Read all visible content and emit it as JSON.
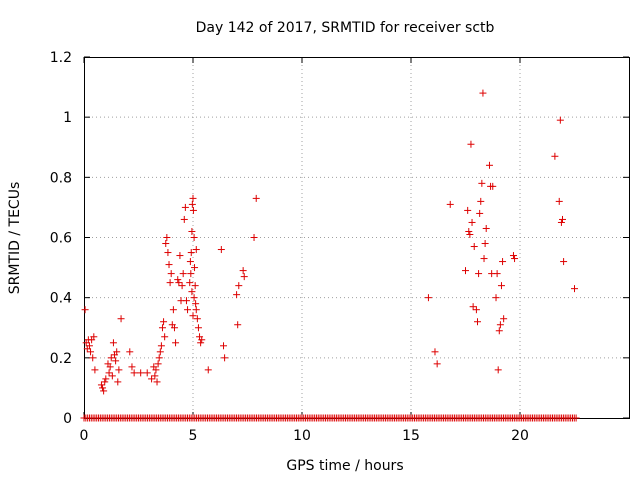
{
  "chart_data": {
    "type": "scatter",
    "title": "Day 142 of 2017, SRMTID for receiver sctb",
    "xlabel": "GPS time / hours",
    "ylabel": "SRMTID / TECUs",
    "xlim": [
      0,
      25
    ],
    "ylim": [
      0,
      1.2
    ],
    "x_ticks": [
      0,
      5,
      10,
      15,
      20
    ],
    "x_tick_labels": [
      "0",
      "5",
      "10",
      "15",
      "20"
    ],
    "y_ticks": [
      0,
      0.2,
      0.4,
      0.6,
      0.8,
      1.0,
      1.2
    ],
    "y_tick_labels": [
      "0",
      "0.2",
      "0.4",
      "0.6",
      "0.8",
      "1",
      "1.2"
    ],
    "grid": true,
    "marker": "+",
    "series": [
      {
        "name": "sctb",
        "color": "#dd0000",
        "points": [
          [
            0.05,
            0.36
          ],
          [
            0.1,
            0.25
          ],
          [
            0.15,
            0.23
          ],
          [
            0.2,
            0.26
          ],
          [
            0.25,
            0.24
          ],
          [
            0.3,
            0.22
          ],
          [
            0.35,
            0.26
          ],
          [
            0.4,
            0.2
          ],
          [
            0.45,
            0.27
          ],
          [
            0.5,
            0.16
          ],
          [
            0.8,
            0.11
          ],
          [
            0.85,
            0.1
          ],
          [
            0.9,
            0.09
          ],
          [
            0.95,
            0.12
          ],
          [
            1.0,
            0.13
          ],
          [
            1.1,
            0.18
          ],
          [
            1.15,
            0.15
          ],
          [
            1.2,
            0.17
          ],
          [
            1.25,
            0.2
          ],
          [
            1.3,
            0.14
          ],
          [
            1.35,
            0.25
          ],
          [
            1.4,
            0.21
          ],
          [
            1.45,
            0.19
          ],
          [
            1.5,
            0.22
          ],
          [
            1.55,
            0.12
          ],
          [
            1.6,
            0.16
          ],
          [
            1.7,
            0.33
          ],
          [
            2.1,
            0.22
          ],
          [
            2.2,
            0.17
          ],
          [
            2.3,
            0.15
          ],
          [
            2.6,
            0.15
          ],
          [
            2.9,
            0.15
          ],
          [
            3.1,
            0.13
          ],
          [
            3.2,
            0.17
          ],
          [
            3.25,
            0.14
          ],
          [
            3.3,
            0.16
          ],
          [
            3.35,
            0.12
          ],
          [
            3.4,
            0.18
          ],
          [
            3.45,
            0.2
          ],
          [
            3.5,
            0.22
          ],
          [
            3.55,
            0.24
          ],
          [
            3.6,
            0.3
          ],
          [
            3.65,
            0.32
          ],
          [
            3.7,
            0.27
          ],
          [
            3.75,
            0.58
          ],
          [
            3.8,
            0.6
          ],
          [
            3.85,
            0.55
          ],
          [
            3.9,
            0.51
          ],
          [
            3.95,
            0.45
          ],
          [
            4.0,
            0.48
          ],
          [
            4.05,
            0.31
          ],
          [
            4.1,
            0.36
          ],
          [
            4.15,
            0.3
          ],
          [
            4.2,
            0.25
          ],
          [
            4.3,
            0.46
          ],
          [
            4.35,
            0.45
          ],
          [
            4.4,
            0.54
          ],
          [
            4.45,
            0.39
          ],
          [
            4.5,
            0.44
          ],
          [
            4.55,
            0.48
          ],
          [
            4.6,
            0.66
          ],
          [
            4.65,
            0.7
          ],
          [
            4.7,
            0.39
          ],
          [
            4.75,
            0.36
          ],
          [
            4.85,
            0.45
          ],
          [
            4.88,
            0.52
          ],
          [
            4.9,
            0.48
          ],
          [
            4.92,
            0.55
          ],
          [
            4.95,
            0.62
          ],
          [
            4.97,
            0.71
          ],
          [
            5.0,
            0.73
          ],
          [
            5.02,
            0.69
          ],
          [
            5.05,
            0.6
          ],
          [
            5.07,
            0.5
          ],
          [
            5.1,
            0.44
          ],
          [
            5.12,
            0.38
          ],
          [
            5.15,
            0.36
          ],
          [
            5.2,
            0.33
          ],
          [
            5.25,
            0.3
          ],
          [
            5.3,
            0.27
          ],
          [
            5.35,
            0.25
          ],
          [
            5.4,
            0.26
          ],
          [
            5.0,
            0.34
          ],
          [
            5.05,
            0.4
          ],
          [
            5.15,
            0.56
          ],
          [
            4.95,
            0.42
          ],
          [
            5.7,
            0.16
          ],
          [
            6.3,
            0.56
          ],
          [
            6.4,
            0.24
          ],
          [
            6.45,
            0.2
          ],
          [
            7.0,
            0.41
          ],
          [
            7.05,
            0.31
          ],
          [
            7.1,
            0.44
          ],
          [
            7.3,
            0.49
          ],
          [
            7.35,
            0.47
          ],
          [
            7.8,
            0.6
          ],
          [
            7.9,
            0.73
          ],
          [
            15.8,
            0.4
          ],
          [
            16.1,
            0.22
          ],
          [
            16.2,
            0.18
          ],
          [
            16.8,
            0.71
          ],
          [
            17.5,
            0.49
          ],
          [
            17.6,
            0.69
          ],
          [
            17.65,
            0.62
          ],
          [
            17.7,
            0.61
          ],
          [
            17.75,
            0.91
          ],
          [
            17.8,
            0.65
          ],
          [
            17.85,
            0.37
          ],
          [
            17.9,
            0.57
          ],
          [
            18.0,
            0.36
          ],
          [
            18.05,
            0.32
          ],
          [
            18.1,
            0.48
          ],
          [
            18.15,
            0.68
          ],
          [
            18.2,
            0.72
          ],
          [
            18.25,
            0.78
          ],
          [
            18.3,
            1.08
          ],
          [
            18.35,
            0.53
          ],
          [
            18.4,
            0.58
          ],
          [
            18.45,
            0.63
          ],
          [
            18.6,
            0.84
          ],
          [
            18.65,
            0.77
          ],
          [
            18.7,
            0.48
          ],
          [
            18.75,
            0.77
          ],
          [
            18.9,
            0.4
          ],
          [
            18.95,
            0.48
          ],
          [
            19.0,
            0.16
          ],
          [
            19.05,
            0.29
          ],
          [
            19.1,
            0.31
          ],
          [
            19.15,
            0.44
          ],
          [
            19.2,
            0.52
          ],
          [
            19.25,
            0.33
          ],
          [
            19.7,
            0.54
          ],
          [
            19.75,
            0.53
          ],
          [
            21.6,
            0.87
          ],
          [
            21.8,
            0.72
          ],
          [
            21.85,
            0.99
          ],
          [
            21.9,
            0.65
          ],
          [
            21.95,
            0.66
          ],
          [
            22.0,
            0.52
          ],
          [
            22.5,
            0.43
          ]
        ]
      }
    ],
    "baseline_zero_x_range": [
      0,
      22.6
    ]
  }
}
